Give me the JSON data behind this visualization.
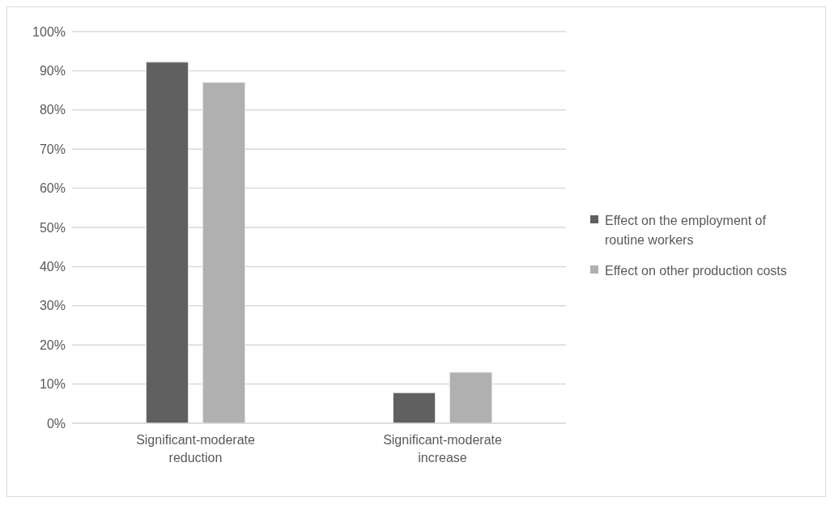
{
  "chart_data": {
    "type": "bar",
    "categories": [
      "Significant-moderate reduction",
      "Significant-moderate increase"
    ],
    "series": [
      {
        "name": "Effect on the employment of routine workers",
        "color": "#606060",
        "values": [
          92.2,
          7.8
        ]
      },
      {
        "name": "Effect on other production costs",
        "color": "#b0b0b0",
        "values": [
          87,
          13
        ]
      }
    ],
    "ylim": [
      0,
      100
    ],
    "yticks": [
      {
        "value": 0,
        "label": "0%"
      },
      {
        "value": 10,
        "label": "10%"
      },
      {
        "value": 20,
        "label": "20%"
      },
      {
        "value": 30,
        "label": "30%"
      },
      {
        "value": 40,
        "label": "40%"
      },
      {
        "value": 50,
        "label": "50%"
      },
      {
        "value": 60,
        "label": "60%"
      },
      {
        "value": 70,
        "label": "70%"
      },
      {
        "value": 80,
        "label": "80%"
      },
      {
        "value": 90,
        "label": "90%"
      },
      {
        "value": 100,
        "label": "100%"
      }
    ],
    "grid": "y",
    "legend": "right"
  }
}
